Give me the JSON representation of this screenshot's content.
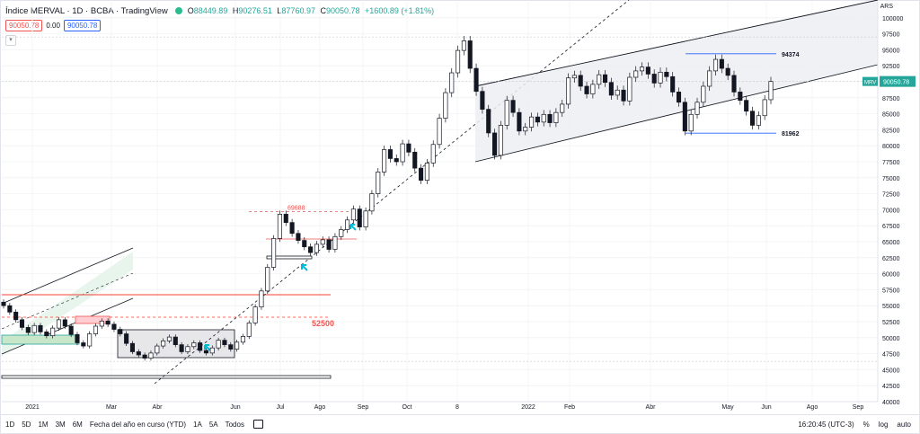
{
  "header": {
    "title": "Índice MERVAL · 1D · BCBA · TradingView",
    "ohlc": [
      {
        "k": "O",
        "v": "88449.89"
      },
      {
        "k": "H",
        "v": "90276.51"
      },
      {
        "k": "L",
        "v": "87760.97"
      },
      {
        "k": "C",
        "v": "90050.78"
      }
    ],
    "change": "+1600.89 (+1.81%)",
    "currency": "ARS"
  },
  "indicator": {
    "sell_price": "90050.78",
    "spread": "0.00",
    "buy_price": "90050.78"
  },
  "collapse_icon": "chevron-down-icon",
  "bottom_bar": {
    "timeframes": [
      "1D",
      "5D",
      "1M",
      "3M",
      "6M",
      "Fecha del año en curso (YTD)",
      "1A",
      "5A",
      "Todos"
    ],
    "time": "16:20:45 (UTC-3)",
    "percent": "%",
    "log": "log",
    "auto": "auto"
  },
  "chart_data": {
    "type": "candlestick",
    "symbol": "MRV",
    "last_price": "90050.78",
    "ylim": [
      40000,
      102500
    ],
    "y_ticks": [
      40000,
      42500,
      45000,
      47500,
      50000,
      52500,
      55000,
      57500,
      60000,
      62500,
      65000,
      67500,
      70000,
      72500,
      75000,
      77500,
      80000,
      82500,
      85000,
      87500,
      90000,
      92500,
      95000,
      97500,
      100000
    ],
    "x_ticks": [
      "2021",
      "Mar",
      "Abr",
      "Jun",
      "Jul",
      "Ago",
      "Sep",
      "Oct",
      "8",
      "2022",
      "Feb",
      "Abr",
      "May",
      "Jun",
      "Ago",
      "Sep"
    ],
    "annotations": [
      {
        "text": "94374",
        "level": 94374
      },
      {
        "text": "81962",
        "level": 81962
      },
      {
        "text": "69688",
        "level": 69688
      },
      {
        "text": "52500",
        "level": 52500
      }
    ],
    "colors": {
      "up": "#26a69a",
      "down": "#ef5350",
      "candle": "#131722",
      "channel": "#131722",
      "resistance": "#f44336",
      "support_line": "#2962ff",
      "arrow": "#00bcd4"
    },
    "series_close": [
      55000,
      54000,
      52800,
      51600,
      50800,
      51900,
      50900,
      50300,
      51500,
      52800,
      51800,
      50500,
      49200,
      48700,
      50600,
      51800,
      52600,
      52100,
      51300,
      50600,
      49100,
      47800,
      47300,
      46800,
      47600,
      48700,
      49500,
      50100,
      48900,
      47800,
      48600,
      49200,
      48000,
      47600,
      48400,
      49600,
      48900,
      48200,
      49300,
      50200,
      52300,
      54800,
      57300,
      61000,
      65500,
      69300,
      68000,
      66300,
      65200,
      64200,
      63300,
      64600,
      65300,
      63800,
      65800,
      66900,
      68400,
      70100,
      67300,
      69800,
      72500,
      75900,
      79400,
      78000,
      77500,
      80300,
      79000,
      76500,
      74600,
      77300,
      80200,
      84300,
      88300,
      91400,
      94900,
      96400,
      92100,
      88500,
      85700,
      82000,
      78500,
      83200,
      87100,
      85200,
      82300,
      82900,
      84500,
      83700,
      84900,
      83600,
      85200,
      86500,
      90600,
      91000,
      89300,
      88100,
      89600,
      91100,
      89900,
      87900,
      88700,
      87000,
      90700,
      91700,
      92300,
      91200,
      89800,
      91500,
      90800,
      88400,
      86800,
      82300,
      84900,
      86800,
      89300,
      91700,
      93500,
      92100,
      91000,
      88400,
      87100,
      85400,
      83200,
      84700,
      87200,
      90050
    ]
  }
}
